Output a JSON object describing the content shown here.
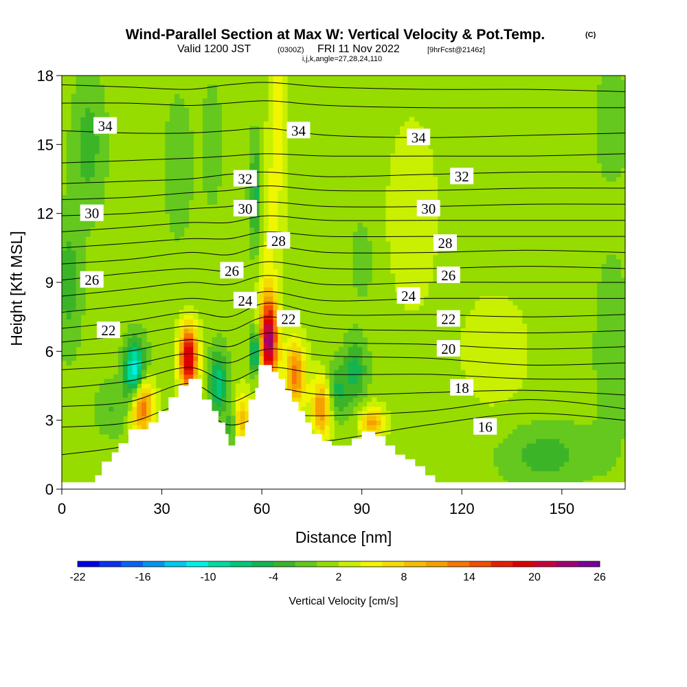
{
  "header": {
    "title": "Wind-Parallel Section at Max W: Vertical Velocity & Pot.Temp.",
    "copyright": "(C)",
    "valid_main": "Valid 1200 JST",
    "valid_utc": "(0300Z)",
    "valid_date": "FRI 11 Nov 2022",
    "forecast": "[9hrFcst@2146z]",
    "indices": "i,j,k,angle=27,28,24,110"
  },
  "chart_data": {
    "type": "heatmap",
    "xlabel": "Distance [nm]",
    "ylabel": "Height [Kft MSL]",
    "xlim": [
      0,
      169
    ],
    "ylim": [
      0,
      18
    ],
    "xticks": [
      "0",
      "30",
      "60",
      "90",
      "120",
      "150"
    ],
    "yticks": [
      "0",
      "3",
      "6",
      "9",
      "12",
      "15",
      "18"
    ],
    "colorbar": {
      "label": "Vertical Velocity [cm/s]",
      "tick_labels": [
        "-22",
        "-16",
        "-10",
        "-4",
        "2",
        "8",
        "14",
        "20",
        "26"
      ],
      "levels": [
        -22,
        -20,
        -18,
        -16,
        -14,
        -12,
        -10,
        -8,
        -6,
        -4,
        -2,
        0,
        2,
        4,
        6,
        8,
        10,
        12,
        14,
        16,
        18,
        20,
        22,
        24,
        26
      ],
      "colors": [
        "#0000e6",
        "#0a32f0",
        "#0a64f0",
        "#0096f0",
        "#00c8f0",
        "#00f0e6",
        "#00dca0",
        "#00c878",
        "#14b450",
        "#3cb428",
        "#64c81e",
        "#96dc00",
        "#c8f000",
        "#f0f500",
        "#f5dc00",
        "#f5be00",
        "#f5a000",
        "#f57800",
        "#f05000",
        "#e61e00",
        "#dc0000",
        "#c8003c",
        "#a0006e",
        "#780096"
      ]
    },
    "series_name": "Vertical Velocity",
    "terrain_kft": [
      [
        0,
        0.3
      ],
      [
        10,
        0.3
      ],
      [
        10,
        0.6
      ],
      [
        12,
        0.6
      ],
      [
        12,
        1.2
      ],
      [
        15,
        1.2
      ],
      [
        15,
        1.6
      ],
      [
        17,
        1.6
      ],
      [
        17,
        2.0
      ],
      [
        20,
        2.0
      ],
      [
        20,
        2.6
      ],
      [
        26,
        2.6
      ],
      [
        26,
        2.9
      ],
      [
        29,
        2.9
      ],
      [
        29,
        3.4
      ],
      [
        32,
        3.4
      ],
      [
        32,
        4.0
      ],
      [
        35,
        4.0
      ],
      [
        35,
        4.5
      ],
      [
        38,
        4.5
      ],
      [
        38,
        4.8
      ],
      [
        42,
        4.8
      ],
      [
        42,
        3.9
      ],
      [
        45,
        3.9
      ],
      [
        45,
        3.4
      ],
      [
        47,
        3.4
      ],
      [
        47,
        2.9
      ],
      [
        49,
        2.9
      ],
      [
        49,
        2.4
      ],
      [
        50,
        2.4
      ],
      [
        50,
        1.9
      ],
      [
        52,
        1.9
      ],
      [
        52,
        2.3
      ],
      [
        55,
        2.3
      ],
      [
        55,
        2.9
      ],
      [
        56,
        2.9
      ],
      [
        56,
        3.9
      ],
      [
        58,
        3.9
      ],
      [
        58,
        4.4
      ],
      [
        59,
        4.4
      ],
      [
        59,
        5.4
      ],
      [
        63,
        5.4
      ],
      [
        63,
        5.1
      ],
      [
        65,
        5.1
      ],
      [
        65,
        4.8
      ],
      [
        67,
        4.8
      ],
      [
        67,
        4.3
      ],
      [
        69,
        4.3
      ],
      [
        69,
        3.8
      ],
      [
        71,
        3.8
      ],
      [
        71,
        3.4
      ],
      [
        73,
        3.4
      ],
      [
        73,
        2.9
      ],
      [
        75,
        2.9
      ],
      [
        75,
        2.4
      ],
      [
        78,
        2.4
      ],
      [
        78,
        2.1
      ],
      [
        81,
        2.1
      ],
      [
        81,
        1.9
      ],
      [
        87,
        1.9
      ],
      [
        87,
        2.2
      ],
      [
        90,
        2.2
      ],
      [
        90,
        2.5
      ],
      [
        94,
        2.5
      ],
      [
        94,
        2.3
      ],
      [
        97,
        2.3
      ],
      [
        97,
        1.9
      ],
      [
        100,
        1.9
      ],
      [
        100,
        1.5
      ],
      [
        103,
        1.5
      ],
      [
        103,
        1.3
      ],
      [
        106,
        1.3
      ],
      [
        106,
        1.0
      ],
      [
        109,
        1.0
      ],
      [
        109,
        0.6
      ],
      [
        112,
        0.6
      ],
      [
        112,
        0.3
      ],
      [
        169,
        0.3
      ]
    ],
    "updrafts": [
      {
        "x": 38,
        "y": 5.7,
        "peak": 20,
        "rx": 2.8,
        "ry": 1.4
      },
      {
        "x": 62,
        "y": 6.5,
        "peak": 22,
        "rx": 2.8,
        "ry": 1.9
      },
      {
        "x": 24,
        "y": 3.7,
        "peak": 14,
        "rx": 3.3,
        "ry": 1.3
      },
      {
        "x": 54,
        "y": 3.0,
        "peak": 8,
        "rx": 2.8,
        "ry": 1.2
      },
      {
        "x": 70,
        "y": 5.0,
        "peak": 12,
        "rx": 3.0,
        "ry": 1.5
      },
      {
        "x": 78,
        "y": 3.6,
        "peak": 12,
        "rx": 3.0,
        "ry": 1.3
      },
      {
        "x": 93,
        "y": 2.9,
        "peak": 10,
        "rx": 3.5,
        "ry": 0.7
      },
      {
        "x": 65,
        "y": 16,
        "peak": 4,
        "rx": 2.8,
        "ry": 4.5
      },
      {
        "x": 62,
        "y": 11,
        "peak": 3,
        "rx": 3.0,
        "ry": 3.5
      },
      {
        "x": 105,
        "y": 12,
        "peak": 2,
        "rx": 9,
        "ry": 5
      },
      {
        "x": 130,
        "y": 6,
        "peak": 2,
        "rx": 12,
        "ry": 3
      }
    ],
    "downdrafts": [
      {
        "x": 22,
        "y": 5.1,
        "peak": -14,
        "rx": 3.2,
        "ry": 1.3
      },
      {
        "x": 58,
        "y": 6.0,
        "peak": -12,
        "rx": 1.4,
        "ry": 1.0
      },
      {
        "x": 47,
        "y": 4.6,
        "peak": -8,
        "rx": 2.8,
        "ry": 1.5
      },
      {
        "x": 51,
        "y": 2.7,
        "peak": -6,
        "rx": 1.5,
        "ry": 0.9
      },
      {
        "x": 88,
        "y": 5.2,
        "peak": -6,
        "rx": 3.5,
        "ry": 1.4
      },
      {
        "x": 82,
        "y": 4.2,
        "peak": -6,
        "rx": 3.5,
        "ry": 1.2
      },
      {
        "x": 58,
        "y": 12.8,
        "peak": -6,
        "rx": 1.8,
        "ry": 2.4
      },
      {
        "x": 2,
        "y": 9.0,
        "peak": -4,
        "rx": 4,
        "ry": 3
      },
      {
        "x": 8,
        "y": 15,
        "peak": -4,
        "rx": 5,
        "ry": 3
      },
      {
        "x": 35,
        "y": 14,
        "peak": -3,
        "rx": 4,
        "ry": 3
      },
      {
        "x": 45,
        "y": 15,
        "peak": -3,
        "rx": 3,
        "ry": 2.5
      },
      {
        "x": 90,
        "y": 10,
        "peak": -3,
        "rx": 3,
        "ry": 1.6
      },
      {
        "x": 145,
        "y": 1.5,
        "peak": -4,
        "rx": 14,
        "ry": 1.4
      },
      {
        "x": 165,
        "y": 6,
        "peak": -3,
        "rx": 5,
        "ry": 4
      },
      {
        "x": 165,
        "y": 16,
        "peak": -2,
        "rx": 6,
        "ry": 3
      },
      {
        "x": 15,
        "y": 3.5,
        "peak": -3,
        "rx": 5,
        "ry": 1.2
      }
    ],
    "theta_levels": [
      16,
      17,
      18,
      19,
      20,
      21,
      22,
      23,
      24,
      25,
      26,
      27,
      28,
      29,
      30,
      31,
      32,
      33,
      34,
      35,
      36
    ],
    "theta_heights_kft": {
      "x": [
        0,
        20,
        38,
        50,
        62,
        80,
        110,
        140,
        169
      ],
      "16": [
        1.5,
        1.9,
        2.7,
        1.8,
        1.9,
        2.1,
        2.8,
        3.3,
        3.0
      ],
      "17": [
        2.7,
        2.9,
        3.7,
        2.8,
        3.2,
        3.2,
        3.4,
        3.9,
        3.5
      ],
      "18": [
        3.6,
        3.8,
        4.6,
        3.8,
        4.4,
        4.1,
        4.2,
        4.3,
        4.1
      ],
      "19": [
        4.4,
        4.7,
        5.3,
        4.7,
        5.3,
        5.0,
        5.0,
        4.8,
        4.8
      ],
      "20": [
        5.2,
        5.4,
        5.9,
        5.5,
        6.1,
        5.8,
        5.7,
        5.4,
        5.5
      ],
      "21": [
        5.8,
        6.0,
        6.5,
        6.2,
        6.8,
        6.4,
        6.3,
        6.1,
        6.2
      ],
      "22": [
        6.4,
        6.7,
        7.1,
        6.9,
        7.5,
        7.0,
        6.9,
        6.8,
        6.9
      ],
      "23": [
        7.0,
        7.3,
        7.7,
        7.5,
        8.1,
        7.6,
        7.6,
        7.5,
        7.6
      ],
      "24": [
        7.7,
        8.0,
        8.3,
        8.2,
        8.6,
        8.2,
        8.3,
        8.3,
        8.3
      ],
      "25": [
        8.4,
        8.7,
        9.0,
        8.9,
        9.3,
        8.9,
        9.0,
        9.0,
        9.0
      ],
      "26": [
        9.1,
        9.4,
        9.6,
        9.5,
        9.9,
        9.6,
        9.6,
        9.7,
        9.6
      ],
      "27": [
        9.8,
        10.0,
        10.3,
        10.2,
        10.6,
        10.3,
        10.3,
        10.4,
        10.3
      ],
      "28": [
        10.5,
        10.7,
        10.9,
        10.9,
        11.2,
        11.0,
        11.0,
        11.0,
        11.0
      ],
      "29": [
        11.2,
        11.4,
        11.6,
        11.6,
        11.9,
        11.7,
        11.7,
        11.7,
        11.7
      ],
      "30": [
        11.9,
        12.0,
        12.2,
        12.3,
        12.5,
        12.3,
        12.3,
        12.4,
        12.4
      ],
      "31": [
        12.6,
        12.7,
        12.9,
        13.0,
        13.2,
        13.0,
        13.0,
        13.1,
        13.1
      ],
      "32": [
        13.3,
        13.4,
        13.5,
        13.7,
        13.8,
        13.6,
        13.7,
        13.8,
        13.8
      ],
      "33": [
        14.2,
        14.3,
        14.4,
        14.5,
        14.6,
        14.5,
        14.5,
        14.5,
        14.6
      ],
      "34": [
        15.6,
        15.5,
        15.5,
        15.6,
        15.7,
        15.4,
        15.3,
        15.4,
        15.5
      ],
      "35": [
        16.8,
        16.8,
        16.7,
        16.8,
        16.9,
        16.7,
        16.6,
        16.6,
        16.6
      ],
      "36": [
        17.6,
        17.5,
        17.4,
        17.6,
        17.7,
        17.5,
        17.4,
        17.4,
        17.3
      ]
    },
    "contour_labels": [
      {
        "text": "34",
        "x": 13,
        "y": 15.8
      },
      {
        "text": "34",
        "x": 71,
        "y": 15.6
      },
      {
        "text": "34",
        "x": 107,
        "y": 15.3
      },
      {
        "text": "32",
        "x": 55,
        "y": 13.5
      },
      {
        "text": "32",
        "x": 120,
        "y": 13.6
      },
      {
        "text": "30",
        "x": 9,
        "y": 12.0
      },
      {
        "text": "30",
        "x": 55,
        "y": 12.2
      },
      {
        "text": "30",
        "x": 110,
        "y": 12.2
      },
      {
        "text": "28",
        "x": 65,
        "y": 10.8
      },
      {
        "text": "28",
        "x": 115,
        "y": 10.7
      },
      {
        "text": "26",
        "x": 9,
        "y": 9.1
      },
      {
        "text": "26",
        "x": 51,
        "y": 9.5
      },
      {
        "text": "26",
        "x": 116,
        "y": 9.3
      },
      {
        "text": "24",
        "x": 55,
        "y": 8.2
      },
      {
        "text": "24",
        "x": 104,
        "y": 8.4
      },
      {
        "text": "22",
        "x": 14,
        "y": 6.9
      },
      {
        "text": "22",
        "x": 68,
        "y": 7.4
      },
      {
        "text": "22",
        "x": 116,
        "y": 7.4
      },
      {
        "text": "20",
        "x": 116,
        "y": 6.1
      },
      {
        "text": "18",
        "x": 120,
        "y": 4.4
      },
      {
        "text": "16",
        "x": 127,
        "y": 2.7
      }
    ]
  }
}
